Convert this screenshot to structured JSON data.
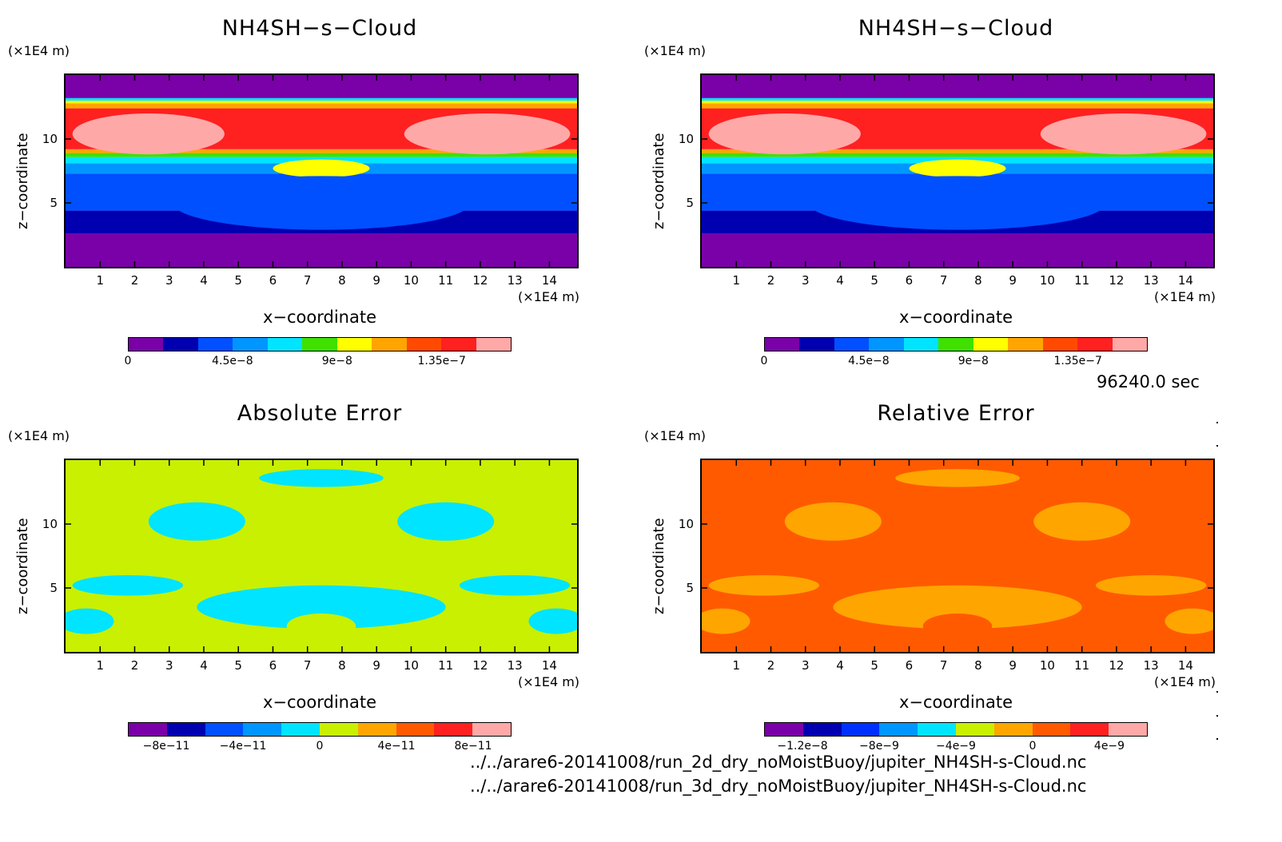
{
  "timestamp": "96240.0 sec",
  "files": [
    "../../arare6-20141008/run_2d_dry_noMoistBuoy/jupiter_NH4SH-s-Cloud.nc",
    "../../arare6-20141008/run_3d_dry_noMoistBuoy/jupiter_NH4SH-s-Cloud.nc"
  ],
  "chart_data": [
    {
      "type": "heatmap",
      "title": "NH4SH−s−Cloud",
      "xlabel": "x−coordinate",
      "ylabel": "z−coordinate",
      "x_unit": "(×1E4 m)",
      "y_unit": "(×1E4 m)",
      "x_ticks": [
        "1",
        "2",
        "3",
        "4",
        "5",
        "6",
        "7",
        "8",
        "9",
        "10",
        "11",
        "12",
        "13",
        "14"
      ],
      "y_ticks": [
        "5",
        "10"
      ],
      "xlim": [
        0,
        14.8
      ],
      "ylim": [
        0,
        15
      ],
      "colorbar_ticks": [
        "0",
        "4.5e−8",
        "9e−8",
        "1.35e−7"
      ],
      "colorbar_colors": [
        "#7a00a8",
        "#0000b0",
        "#0050ff",
        "#0096ff",
        "#00e4ff",
        "#40e000",
        "#ffff00",
        "#ffa500",
        "#ff4a00",
        "#ff2020",
        "#ffa8a8"
      ],
      "bands": [
        {
          "z0": 0,
          "z1": 2.6,
          "color": "#7a00a8"
        },
        {
          "z0": 2.6,
          "z1": 4.4,
          "color": "#0000b0"
        },
        {
          "z0": 4.4,
          "z1": 7.3,
          "color": "#0050ff"
        },
        {
          "z0": 7.3,
          "z1": 8.1,
          "color": "#0096ff"
        },
        {
          "z0": 8.1,
          "z1": 8.6,
          "color": "#00e4ff"
        },
        {
          "z0": 8.6,
          "z1": 8.9,
          "color": "#40e000"
        },
        {
          "z0": 8.9,
          "z1": 9.2,
          "color": "#ffa500"
        },
        {
          "z0": 9.2,
          "z1": 12.4,
          "color": "#ff2020"
        },
        {
          "z0": 12.4,
          "z1": 12.8,
          "color": "#ffa500"
        },
        {
          "z0": 12.8,
          "z1": 13.0,
          "color": "#ffff00"
        },
        {
          "z0": 13.0,
          "z1": 13.2,
          "color": "#00e4ff"
        },
        {
          "z0": 13.2,
          "z1": 15,
          "color": "#7a00a8"
        }
      ],
      "blobs": [
        {
          "x": 2.4,
          "z": 10.4,
          "rx": 2.2,
          "rz": 1.6,
          "color": "#ffa8a8"
        },
        {
          "x": 12.2,
          "z": 10.4,
          "rx": 2.4,
          "rz": 1.6,
          "color": "#ffa8a8"
        },
        {
          "x": 7.4,
          "z": 7.7,
          "rx": 1.4,
          "rz": 0.7,
          "color": "#ffff00"
        },
        {
          "x": 7.4,
          "z": 5.0,
          "rx": 4.3,
          "rz": 2.1,
          "color": "#0050ff"
        },
        {
          "x": 7.4,
          "z": 1.3,
          "rx": 2.8,
          "rz": 1.3,
          "color": "#7a00a8"
        }
      ]
    },
    {
      "type": "heatmap",
      "title": "NH4SH−s−Cloud",
      "xlabel": "x−coordinate",
      "ylabel": "z−coordinate",
      "x_unit": "(×1E4 m)",
      "y_unit": "(×1E4 m)",
      "x_ticks": [
        "1",
        "2",
        "3",
        "4",
        "5",
        "6",
        "7",
        "8",
        "9",
        "10",
        "11",
        "12",
        "13",
        "14"
      ],
      "y_ticks": [
        "5",
        "10"
      ],
      "xlim": [
        0,
        14.8
      ],
      "ylim": [
        0,
        15
      ],
      "colorbar_ticks": [
        "0",
        "4.5e−8",
        "9e−8",
        "1.35e−7"
      ],
      "colorbar_colors": [
        "#7a00a8",
        "#0000b0",
        "#0050ff",
        "#0096ff",
        "#00e4ff",
        "#40e000",
        "#ffff00",
        "#ffa500",
        "#ff4a00",
        "#ff2020",
        "#ffa8a8"
      ],
      "bands": [
        {
          "z0": 0,
          "z1": 2.6,
          "color": "#7a00a8"
        },
        {
          "z0": 2.6,
          "z1": 4.4,
          "color": "#0000b0"
        },
        {
          "z0": 4.4,
          "z1": 7.3,
          "color": "#0050ff"
        },
        {
          "z0": 7.3,
          "z1": 8.1,
          "color": "#0096ff"
        },
        {
          "z0": 8.1,
          "z1": 8.6,
          "color": "#00e4ff"
        },
        {
          "z0": 8.6,
          "z1": 8.9,
          "color": "#40e000"
        },
        {
          "z0": 8.9,
          "z1": 9.2,
          "color": "#ffa500"
        },
        {
          "z0": 9.2,
          "z1": 12.4,
          "color": "#ff2020"
        },
        {
          "z0": 12.4,
          "z1": 12.8,
          "color": "#ffa500"
        },
        {
          "z0": 12.8,
          "z1": 13.0,
          "color": "#ffff00"
        },
        {
          "z0": 13.0,
          "z1": 13.2,
          "color": "#00e4ff"
        },
        {
          "z0": 13.2,
          "z1": 15,
          "color": "#7a00a8"
        }
      ],
      "blobs": [
        {
          "x": 2.4,
          "z": 10.4,
          "rx": 2.2,
          "rz": 1.6,
          "color": "#ffa8a8"
        },
        {
          "x": 12.2,
          "z": 10.4,
          "rx": 2.4,
          "rz": 1.6,
          "color": "#ffa8a8"
        },
        {
          "x": 7.4,
          "z": 7.7,
          "rx": 1.4,
          "rz": 0.7,
          "color": "#ffff00"
        },
        {
          "x": 7.4,
          "z": 5.0,
          "rx": 4.3,
          "rz": 2.1,
          "color": "#0050ff"
        },
        {
          "x": 7.4,
          "z": 1.3,
          "rx": 2.8,
          "rz": 1.3,
          "color": "#7a00a8"
        }
      ]
    },
    {
      "type": "heatmap",
      "title": "Absolute Error",
      "xlabel": "x−coordinate",
      "ylabel": "z−coordinate",
      "x_unit": "(×1E4 m)",
      "y_unit": "(×1E4 m)",
      "x_ticks": [
        "1",
        "2",
        "3",
        "4",
        "5",
        "6",
        "7",
        "8",
        "9",
        "10",
        "11",
        "12",
        "13",
        "14"
      ],
      "y_ticks": [
        "5",
        "10"
      ],
      "xlim": [
        0,
        14.8
      ],
      "ylim": [
        0,
        15
      ],
      "colorbar_ticks": [
        "−8e−11",
        "−4e−11",
        "0",
        "4e−11",
        "8e−11"
      ],
      "colorbar_colors": [
        "#7a00a8",
        "#0000b0",
        "#0050ff",
        "#0096ff",
        "#00e4ff",
        "#c8f000",
        "#ffa500",
        "#ff5a00",
        "#ff2020",
        "#ffa8a8"
      ],
      "background": "#c8f000",
      "blobs": [
        {
          "x": 7.4,
          "z": 3.5,
          "rx": 3.6,
          "rz": 1.7,
          "color": "#00e4ff"
        },
        {
          "x": 1.8,
          "z": 5.2,
          "rx": 1.6,
          "rz": 0.8,
          "color": "#00e4ff"
        },
        {
          "x": 13.0,
          "z": 5.2,
          "rx": 1.6,
          "rz": 0.8,
          "color": "#00e4ff"
        },
        {
          "x": 3.8,
          "z": 10.2,
          "rx": 1.4,
          "rz": 1.5,
          "color": "#00e4ff"
        },
        {
          "x": 11.0,
          "z": 10.2,
          "rx": 1.4,
          "rz": 1.5,
          "color": "#00e4ff"
        },
        {
          "x": 7.4,
          "z": 13.6,
          "rx": 1.8,
          "rz": 0.7,
          "color": "#00e4ff"
        },
        {
          "x": 0.6,
          "z": 2.4,
          "rx": 0.8,
          "rz": 1.0,
          "color": "#00e4ff"
        },
        {
          "x": 14.2,
          "z": 2.4,
          "rx": 0.8,
          "rz": 1.0,
          "color": "#00e4ff"
        },
        {
          "x": 7.4,
          "z": 2.0,
          "rx": 1.0,
          "rz": 1.0,
          "color": "#c8f000"
        }
      ]
    },
    {
      "type": "heatmap",
      "title": "Relative Error",
      "xlabel": "x−coordinate",
      "ylabel": "z−coordinate",
      "x_unit": "(×1E4 m)",
      "y_unit": "(×1E4 m)",
      "x_ticks": [
        "1",
        "2",
        "3",
        "4",
        "5",
        "6",
        "7",
        "8",
        "9",
        "10",
        "11",
        "12",
        "13",
        "14"
      ],
      "y_ticks": [
        "5",
        "10"
      ],
      "xlim": [
        0,
        14.8
      ],
      "ylim": [
        0,
        15
      ],
      "colorbar_ticks": [
        "−1.2e−8",
        "−8e−9",
        "−4e−9",
        "0",
        "4e−9"
      ],
      "colorbar_colors": [
        "#7a00a8",
        "#0000b0",
        "#0030ff",
        "#0096ff",
        "#00e4ff",
        "#c8f000",
        "#ffa500",
        "#ff5a00",
        "#ff2020",
        "#ffa8a8"
      ],
      "background": "#ff5a00",
      "blobs": [
        {
          "x": 7.4,
          "z": 3.5,
          "rx": 3.6,
          "rz": 1.7,
          "color": "#ffa500"
        },
        {
          "x": 1.8,
          "z": 5.2,
          "rx": 1.6,
          "rz": 0.8,
          "color": "#ffa500"
        },
        {
          "x": 13.0,
          "z": 5.2,
          "rx": 1.6,
          "rz": 0.8,
          "color": "#ffa500"
        },
        {
          "x": 3.8,
          "z": 10.2,
          "rx": 1.4,
          "rz": 1.5,
          "color": "#ffa500"
        },
        {
          "x": 11.0,
          "z": 10.2,
          "rx": 1.4,
          "rz": 1.5,
          "color": "#ffa500"
        },
        {
          "x": 7.4,
          "z": 13.6,
          "rx": 1.8,
          "rz": 0.7,
          "color": "#ffa500"
        },
        {
          "x": 0.6,
          "z": 2.4,
          "rx": 0.8,
          "rz": 1.0,
          "color": "#ffa500"
        },
        {
          "x": 14.2,
          "z": 2.4,
          "rx": 0.8,
          "rz": 1.0,
          "color": "#ffa500"
        },
        {
          "x": 7.4,
          "z": 2.0,
          "rx": 1.0,
          "rz": 1.0,
          "color": "#ff5a00"
        }
      ]
    }
  ]
}
